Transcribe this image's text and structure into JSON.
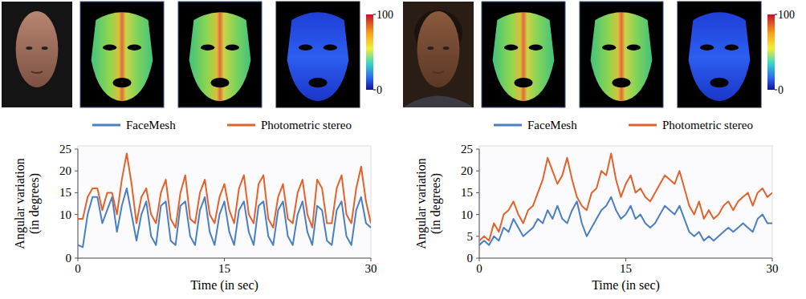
{
  "chart_data": [
    {
      "type": "line",
      "xlabel": "Time (in sec)",
      "ylabel": "Angular variation (in degrees)",
      "xlim": [
        0,
        30
      ],
      "xticks": [
        0,
        15,
        30
      ],
      "ylim": [
        0,
        25
      ],
      "yticks": [
        0,
        10,
        15,
        20,
        25
      ],
      "legend": "top",
      "colorbar_range": [
        0,
        100
      ],
      "colorbar_ticks": [
        0,
        100
      ],
      "x": [
        0,
        0.5,
        1,
        1.5,
        2,
        2.5,
        3,
        3.5,
        4,
        4.5,
        5,
        5.5,
        6,
        6.5,
        7,
        7.5,
        8,
        8.5,
        9,
        9.5,
        10,
        10.5,
        11,
        11.5,
        12,
        12.5,
        13,
        13.5,
        14,
        14.5,
        15,
        15.5,
        16,
        16.5,
        17,
        17.5,
        18,
        18.5,
        19,
        19.5,
        20,
        20.5,
        21,
        21.5,
        22,
        22.5,
        23,
        23.5,
        24,
        24.5,
        25,
        25.5,
        26,
        26.5,
        27,
        27.5,
        28,
        28.5,
        29,
        29.5,
        30
      ],
      "series": [
        {
          "name": "FaceMesh",
          "color": "#4a7fc4",
          "values": [
            3,
            2.5,
            10,
            14,
            14,
            8,
            11,
            14,
            6,
            12,
            16,
            10,
            4,
            10,
            13,
            5,
            3,
            12,
            13,
            4,
            3,
            12,
            13,
            5,
            3,
            11,
            14,
            6,
            3,
            10,
            13,
            6,
            3,
            11,
            13,
            6,
            3,
            12,
            13,
            5,
            3,
            11,
            13,
            5,
            3,
            10,
            13,
            6,
            3,
            12,
            11,
            4,
            3,
            11,
            13,
            5,
            3,
            11,
            14,
            8,
            7
          ]
        },
        {
          "name": "Photometric stereo",
          "color": "#e2622c",
          "values": [
            9,
            9,
            14,
            16,
            16,
            11,
            15,
            15,
            10,
            18,
            24,
            17,
            8,
            14,
            16,
            10,
            8,
            15,
            18,
            9,
            7,
            15,
            19,
            9,
            8,
            15,
            18,
            10,
            8,
            14,
            17,
            11,
            8,
            16,
            19,
            10,
            8,
            17,
            19,
            9,
            7,
            14,
            17,
            9,
            8,
            15,
            18,
            10,
            7,
            18,
            16,
            8,
            8,
            16,
            19,
            10,
            8,
            16,
            21,
            13,
            8
          ]
        }
      ]
    },
    {
      "type": "line",
      "xlabel": "Time (in sec)",
      "ylabel": "Angular variation (in degrees)",
      "xlim": [
        0,
        30
      ],
      "xticks": [
        0,
        15,
        30
      ],
      "ylim": [
        0,
        25
      ],
      "yticks": [
        0,
        5,
        10,
        15,
        20,
        25
      ],
      "legend": "top",
      "colorbar_range": [
        0,
        100
      ],
      "colorbar_ticks": [
        0,
        100
      ],
      "x": [
        0,
        0.5,
        1,
        1.5,
        2,
        2.5,
        3,
        3.5,
        4,
        4.5,
        5,
        5.5,
        6,
        6.5,
        7,
        7.5,
        8,
        8.5,
        9,
        9.5,
        10,
        10.5,
        11,
        11.5,
        12,
        12.5,
        13,
        13.5,
        14,
        14.5,
        15,
        15.5,
        16,
        16.5,
        17,
        17.5,
        18,
        18.5,
        19,
        19.5,
        20,
        20.5,
        21,
        21.5,
        22,
        22.5,
        23,
        23.5,
        24,
        24.5,
        25,
        25.5,
        26,
        26.5,
        27,
        27.5,
        28,
        28.5,
        29,
        29.5,
        30
      ],
      "series": [
        {
          "name": "FaceMesh",
          "color": "#4a7fc4",
          "values": [
            3,
            4,
            3,
            5,
            4,
            7,
            6,
            9,
            7,
            5,
            6,
            7,
            9,
            8,
            11,
            9,
            12,
            9,
            8,
            11,
            13,
            8,
            5,
            7,
            9,
            11,
            12,
            14,
            11,
            9,
            10,
            12,
            9,
            10,
            8,
            7,
            8,
            10,
            12,
            11,
            10,
            12,
            9,
            6,
            5,
            6,
            4,
            5,
            4,
            5,
            6,
            7,
            6,
            7,
            8,
            7,
            6,
            9,
            10,
            8,
            8
          ]
        },
        {
          "name": "Photometric stereo",
          "color": "#e2622c",
          "values": [
            4,
            5,
            4,
            8,
            6,
            10,
            11,
            13,
            10,
            8,
            11,
            12,
            15,
            18,
            23,
            20,
            17,
            19,
            23,
            18,
            14,
            12,
            11,
            15,
            16,
            20,
            19,
            24,
            18,
            14,
            17,
            19,
            15,
            16,
            14,
            13,
            15,
            17,
            19,
            18,
            17,
            20,
            16,
            12,
            10,
            13,
            9,
            11,
            9,
            10,
            12,
            13,
            11,
            13,
            14,
            15,
            12,
            15,
            16,
            14,
            15
          ]
        }
      ]
    }
  ]
}
